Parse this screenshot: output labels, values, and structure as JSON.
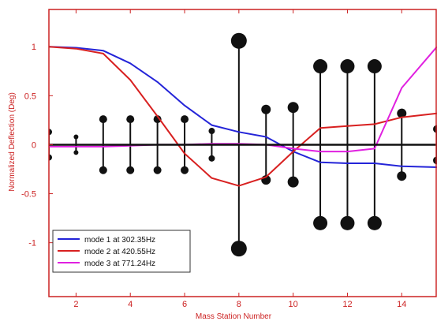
{
  "chart_data": {
    "type": "line",
    "xlabel": "Mass Station Number",
    "ylabel": "Normalized Deflection (Deg)",
    "xlim": [
      1,
      15.3
    ],
    "ylim": [
      -1.55,
      1.38
    ],
    "xticks": [
      2,
      4,
      6,
      8,
      10,
      12,
      14
    ],
    "yticks": [
      -1,
      -0.5,
      0,
      0.5,
      1
    ],
    "ytick_labels": [
      "-1",
      "-0.5",
      "0",
      "0.5",
      "1"
    ],
    "grid": false,
    "legend_position": "bottom-left",
    "colors": {
      "axis": "#cc2222",
      "mode1": "#2424d8",
      "mode2": "#d82020",
      "mode3": "#e020e0",
      "stems": "#111111"
    },
    "series": [
      {
        "name": "mode 1 at 302.35Hz",
        "color": "#2424d8",
        "x": [
          1,
          2,
          3,
          4,
          5,
          6,
          7,
          8,
          9,
          10,
          11,
          12,
          13,
          14,
          15.3
        ],
        "y": [
          1.0,
          0.99,
          0.96,
          0.83,
          0.64,
          0.4,
          0.2,
          0.13,
          0.08,
          -0.07,
          -0.18,
          -0.19,
          -0.19,
          -0.22,
          -0.23
        ]
      },
      {
        "name": "mode 2 at 420.55Hz",
        "color": "#d82020",
        "x": [
          1,
          2,
          3,
          4,
          5,
          6,
          7,
          8,
          9,
          10,
          11,
          12,
          13,
          14,
          15.3
        ],
        "y": [
          1.0,
          0.98,
          0.93,
          0.66,
          0.29,
          -0.09,
          -0.34,
          -0.42,
          -0.33,
          -0.07,
          0.17,
          0.19,
          0.21,
          0.28,
          0.32
        ]
      },
      {
        "name": "mode 3 at 771.24Hz",
        "color": "#e020e0",
        "x": [
          1,
          2,
          3,
          4,
          5,
          6,
          7,
          8,
          9,
          10,
          11,
          12,
          13,
          14,
          15.3
        ],
        "y": [
          -0.02,
          -0.02,
          -0.02,
          -0.01,
          0.0,
          0.0,
          0.01,
          0.01,
          0.0,
          -0.04,
          -0.07,
          -0.07,
          -0.04,
          0.58,
          1.0
        ]
      }
    ],
    "mass_stations": [
      {
        "x": 1,
        "upper": 0.13,
        "lower": -0.13,
        "size": 4
      },
      {
        "x": 2,
        "upper": 0.08,
        "lower": -0.08,
        "size": 3
      },
      {
        "x": 3,
        "upper": 0.26,
        "lower": -0.26,
        "size": 5
      },
      {
        "x": 4,
        "upper": 0.26,
        "lower": -0.26,
        "size": 5
      },
      {
        "x": 5,
        "upper": 0.26,
        "lower": -0.26,
        "size": 5
      },
      {
        "x": 6,
        "upper": 0.26,
        "lower": -0.26,
        "size": 5
      },
      {
        "x": 7,
        "upper": 0.14,
        "lower": -0.14,
        "size": 4
      },
      {
        "x": 8,
        "upper": 1.06,
        "lower": -1.06,
        "size": 10
      },
      {
        "x": 9,
        "upper": 0.36,
        "lower": -0.36,
        "size": 6
      },
      {
        "x": 10,
        "upper": 0.38,
        "lower": -0.38,
        "size": 7
      },
      {
        "x": 11,
        "upper": 0.8,
        "lower": -0.8,
        "size": 9
      },
      {
        "x": 12,
        "upper": 0.8,
        "lower": -0.8,
        "size": 9
      },
      {
        "x": 13,
        "upper": 0.8,
        "lower": -0.8,
        "size": 9
      },
      {
        "x": 14,
        "upper": 0.32,
        "lower": -0.32,
        "size": 6
      },
      {
        "x": 15.3,
        "upper": 0.16,
        "lower": -0.16,
        "size": 5
      }
    ]
  }
}
